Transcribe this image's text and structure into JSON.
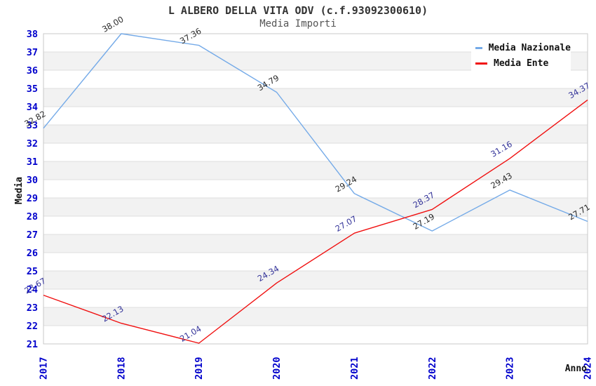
{
  "header": {
    "title": "L ALBERO DELLA VITA ODV (c.f.93092300610)",
    "subtitle": "Media Importi"
  },
  "chart_data": {
    "type": "line",
    "title": "L ALBERO DELLA VITA ODV (c.f.93092300610)",
    "subtitle": "Media Importi",
    "xlabel": "Anno",
    "ylabel": "Media",
    "categories": [
      "2017",
      "2018",
      "2019",
      "2020",
      "2021",
      "2022",
      "2023",
      "2024"
    ],
    "series": [
      {
        "name": "Media Nazionale",
        "color": "#74AAE8",
        "label_color": "#2A2A2A",
        "values": [
          32.82,
          38.0,
          37.36,
          34.79,
          29.24,
          27.19,
          29.43,
          27.71
        ]
      },
      {
        "name": "Media Ente",
        "color": "#F01010",
        "label_color": "#333399",
        "values": [
          23.67,
          22.13,
          21.04,
          24.34,
          27.07,
          28.37,
          31.16,
          34.37
        ]
      }
    ],
    "ylim": [
      21,
      38
    ],
    "ytick_step": 1,
    "yticks": [
      21,
      22,
      23,
      24,
      25,
      26,
      27,
      28,
      29,
      30,
      31,
      32,
      33,
      34,
      35,
      36,
      37,
      38
    ],
    "grid": "horizontal gridlines with alternating white/gray bands",
    "legend_position": "top-right",
    "data_label_rotation_deg": -30,
    "xtick_rotation_deg": -90,
    "colors": {
      "tick_label": "#0000CC",
      "band_gray": "#F2F2F2",
      "band_white": "#FFFFFF",
      "grid_line": "#DFDFDF",
      "frame": "#C8C8C8",
      "title": "#333333",
      "subtitle": "#555555",
      "axis_title": "#111111"
    }
  }
}
